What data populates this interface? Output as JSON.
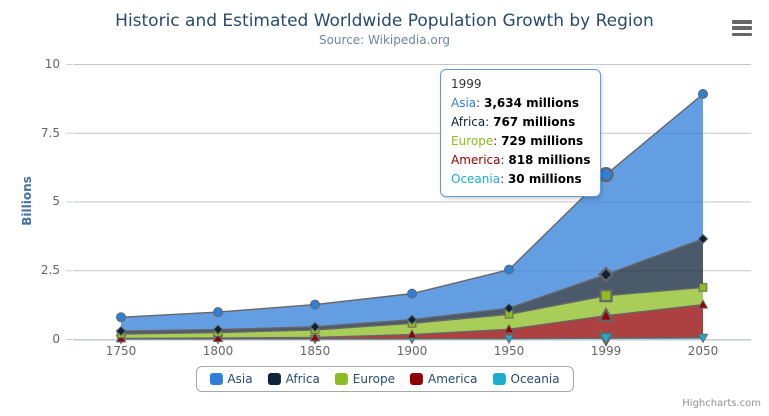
{
  "chart": {
    "title": "Historic and Estimated Worldwide Population Growth by Region",
    "subtitle": "Source: Wikipedia.org",
    "credits": "Highcharts.com"
  },
  "icons": {
    "context_menu": "hamburger-icon"
  },
  "colors": {
    "title": "#274b6d",
    "subtitle": "#6d869f",
    "axis_label": "#666666",
    "ylabel": "#4572a7",
    "grid": "#c6c6c6",
    "axis_line": "#c0d0e0",
    "series_line": "#666666",
    "legend_text": "#274b6d",
    "legend_border": "#a7a7a7",
    "tooltip_border": "#5f9ddf",
    "tooltip_text": "#333333",
    "credits": "#909090",
    "menu_icon": "#666666"
  },
  "chart_data": {
    "type": "area",
    "stacking": "normal",
    "title": "Historic and Estimated Worldwide Population Growth by Region",
    "subtitle": "Source: Wikipedia.org",
    "xlabel": "",
    "ylabel": "Billions",
    "values_unit": "millions",
    "categories": [
      "1750",
      "1800",
      "1850",
      "1900",
      "1950",
      "1999",
      "2050"
    ],
    "series": [
      {
        "name": "Asia",
        "color": "#2f7ed8",
        "marker": "circle",
        "values": [
          502,
          635,
          809,
          947,
          1402,
          3634,
          5268
        ]
      },
      {
        "name": "Africa",
        "color": "#0d233a",
        "marker": "diamond",
        "values": [
          106,
          107,
          111,
          133,
          221,
          767,
          1766
        ]
      },
      {
        "name": "Europe",
        "color": "#8bbc21",
        "marker": "square",
        "values": [
          163,
          203,
          276,
          408,
          547,
          729,
          628
        ]
      },
      {
        "name": "America",
        "color": "#910000",
        "marker": "triangle",
        "values": [
          18,
          31,
          54,
          156,
          339,
          818,
          1201
        ]
      },
      {
        "name": "Oceania",
        "color": "#1aadce",
        "marker": "triangle-down",
        "values": [
          2,
          2,
          2,
          6,
          13,
          30,
          46
        ]
      }
    ],
    "stack_bottom_to_top": [
      4,
      3,
      2,
      1,
      0
    ],
    "yticks": [
      {
        "label": "10",
        "value": 10
      },
      {
        "label": "7.5",
        "value": 7.5
      },
      {
        "label": "5",
        "value": 5
      },
      {
        "label": "2.5",
        "value": 2.5
      },
      {
        "label": "0",
        "value": 0
      }
    ],
    "ylim": [
      0,
      10
    ],
    "grid": true,
    "legend_position": "bottom",
    "hover_category_index": 5
  },
  "tooltip": {
    "header": "1999",
    "rows": [
      {
        "name": "Asia",
        "value": "3,634 millions"
      },
      {
        "name": "Africa",
        "value": "767 millions"
      },
      {
        "name": "Europe",
        "value": "729 millions"
      },
      {
        "name": "America",
        "value": "818 millions"
      },
      {
        "name": "Oceania",
        "value": "30 millions"
      }
    ]
  }
}
